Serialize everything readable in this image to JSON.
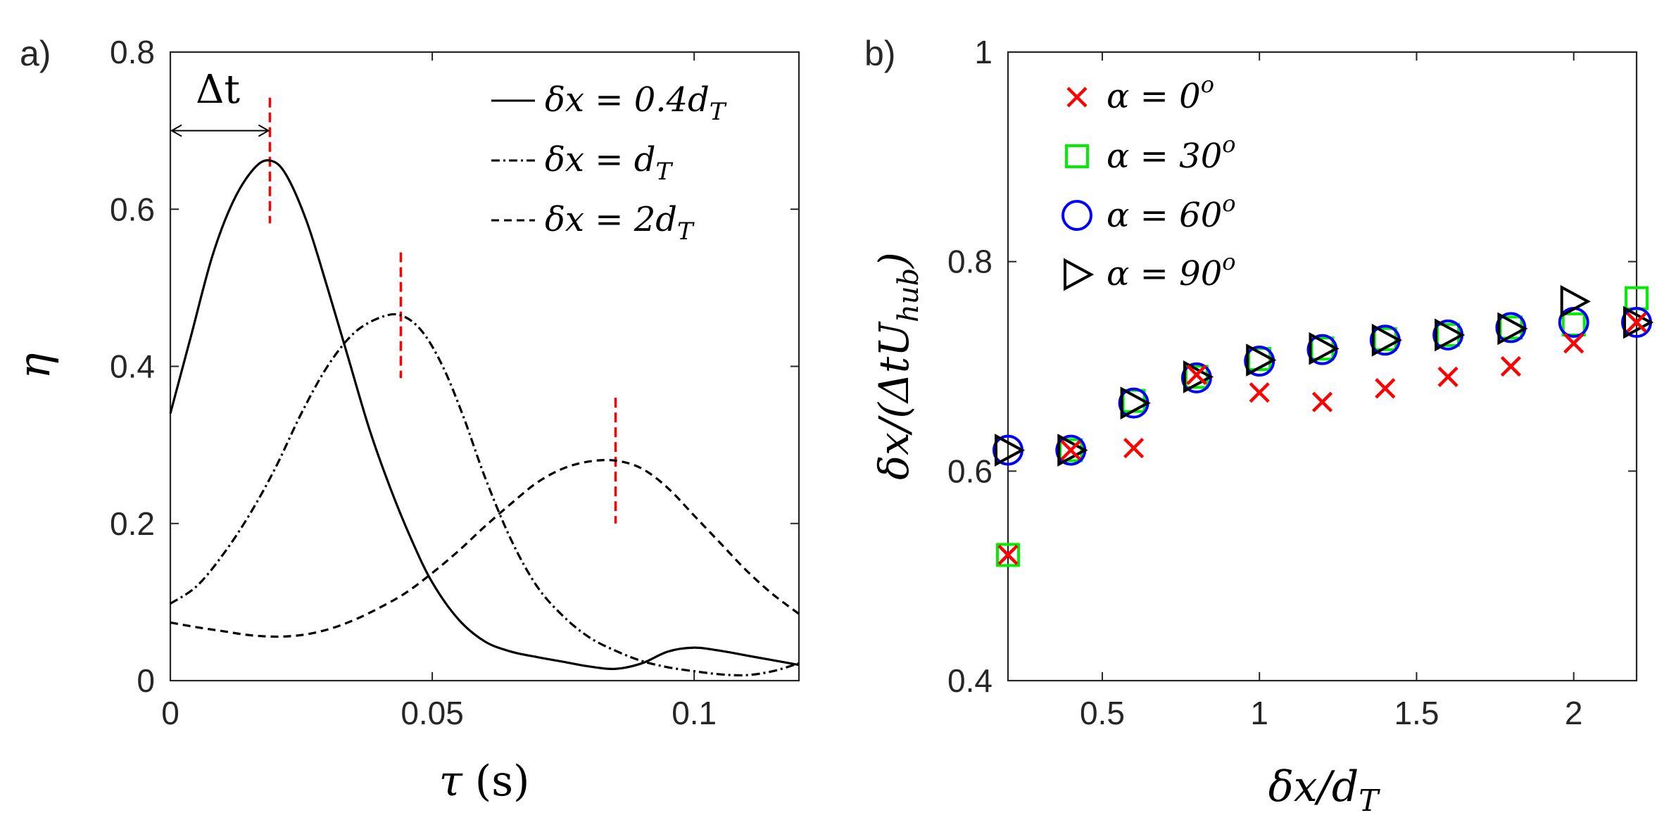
{
  "colors": {
    "axis": "#262626",
    "guide": "#ff0000",
    "green": "#00ee00",
    "blue": "#0000ff",
    "red": "#ff0000",
    "black": "#000000"
  },
  "chart_data": [
    {
      "type": "line",
      "panel_label": "a)",
      "xlabel": "τ",
      "xlabel_unit": "(s)",
      "ylabel": "η",
      "xlim": [
        0,
        0.12
      ],
      "ylim": [
        0,
        0.8
      ],
      "xticks": [
        0,
        0.05,
        0.1
      ],
      "xtick_labels": [
        "0",
        "0.05",
        "0.1"
      ],
      "yticks": [
        0,
        0.2,
        0.4,
        0.6,
        0.8
      ],
      "ytick_labels": [
        "0",
        "0.2",
        "0.4",
        "0.6",
        "0.8"
      ],
      "annotation": {
        "text": "Δt",
        "from_x": 0,
        "to_x": 0.019,
        "y": 0.7
      },
      "legend_position": "top-right",
      "series": [
        {
          "name": "δx = 0.4d_T",
          "legend_lhs": "δx = 0.4d",
          "legend_sub": "T",
          "style": "solid",
          "peak_tau": 0.019,
          "x": [
            0,
            0.004,
            0.008,
            0.012,
            0.016,
            0.019,
            0.022,
            0.026,
            0.03,
            0.034,
            0.038,
            0.042,
            0.046,
            0.05,
            0.055,
            0.06,
            0.065,
            0.07,
            0.075,
            0.08,
            0.085,
            0.09,
            0.095,
            0.1,
            0.105,
            0.11,
            0.115,
            0.12
          ],
          "y": [
            0.34,
            0.44,
            0.54,
            0.61,
            0.652,
            0.662,
            0.645,
            0.585,
            0.5,
            0.41,
            0.32,
            0.245,
            0.18,
            0.125,
            0.078,
            0.05,
            0.037,
            0.03,
            0.024,
            0.018,
            0.015,
            0.022,
            0.037,
            0.042,
            0.038,
            0.032,
            0.026,
            0.02
          ]
        },
        {
          "name": "δx = d_T",
          "legend_lhs": "δx = d",
          "legend_sub": "T",
          "style": "dashdot",
          "peak_tau": 0.044,
          "x": [
            0,
            0.005,
            0.01,
            0.015,
            0.02,
            0.025,
            0.03,
            0.035,
            0.04,
            0.044,
            0.048,
            0.052,
            0.056,
            0.06,
            0.065,
            0.07,
            0.075,
            0.08,
            0.085,
            0.09,
            0.095,
            0.1,
            0.105,
            0.11,
            0.115,
            0.12
          ],
          "y": [
            0.098,
            0.12,
            0.16,
            0.21,
            0.27,
            0.34,
            0.4,
            0.442,
            0.462,
            0.465,
            0.445,
            0.4,
            0.335,
            0.26,
            0.18,
            0.12,
            0.082,
            0.055,
            0.038,
            0.025,
            0.017,
            0.012,
            0.008,
            0.007,
            0.012,
            0.022
          ]
        },
        {
          "name": "δx = 2d_T",
          "legend_lhs": "δx = 2d",
          "legend_sub": "T",
          "style": "dashed",
          "peak_tau": 0.085,
          "x": [
            0,
            0.005,
            0.01,
            0.015,
            0.02,
            0.025,
            0.03,
            0.035,
            0.04,
            0.045,
            0.05,
            0.055,
            0.06,
            0.065,
            0.07,
            0.075,
            0.08,
            0.085,
            0.09,
            0.095,
            0.1,
            0.105,
            0.11,
            0.115,
            0.12
          ],
          "y": [
            0.074,
            0.068,
            0.063,
            0.058,
            0.056,
            0.058,
            0.065,
            0.077,
            0.093,
            0.112,
            0.137,
            0.165,
            0.196,
            0.225,
            0.252,
            0.27,
            0.279,
            0.28,
            0.27,
            0.245,
            0.21,
            0.175,
            0.14,
            0.11,
            0.085
          ]
        }
      ]
    },
    {
      "type": "scatter",
      "panel_label": "b)",
      "xlabel": "δx/d",
      "xlabel_sub": "T",
      "ylabel": "δx/(ΔtU",
      "ylabel_sub": "hub",
      "ylabel_close": ")",
      "xlim": [
        0.2,
        2.2
      ],
      "ylim": [
        0.4,
        1.0
      ],
      "xticks": [
        0.5,
        1,
        1.5,
        2
      ],
      "xtick_labels": [
        "0.5",
        "1",
        "1.5",
        "2"
      ],
      "yticks": [
        0.4,
        0.6,
        0.8,
        1.0
      ],
      "ytick_labels": [
        "0.4",
        "0.6",
        "0.8",
        "1"
      ],
      "legend_position": "top-left",
      "series": [
        {
          "name": "α = 0°",
          "legend_lhs": "α = 0",
          "legend_sup": "o",
          "marker": "x",
          "color": "#ff0000",
          "x": [
            0.2,
            0.4,
            0.6,
            0.8,
            1.0,
            1.2,
            1.4,
            1.6,
            1.8,
            2.0,
            2.2
          ],
          "y": [
            0.52,
            0.62,
            0.622,
            0.692,
            0.675,
            0.666,
            0.679,
            0.69,
            0.7,
            0.722,
            0.742
          ]
        },
        {
          "name": "α = 30°",
          "legend_lhs": "α = 30",
          "legend_sup": "o",
          "marker": "square",
          "color": "#00ee00",
          "x": [
            0.2,
            0.4,
            0.6,
            0.8,
            1.0,
            1.2,
            1.4,
            1.6,
            1.8,
            2.0,
            2.2
          ],
          "y": [
            0.52,
            0.62,
            0.667,
            0.69,
            0.707,
            0.717,
            0.726,
            0.73,
            0.737,
            0.74,
            0.765
          ]
        },
        {
          "name": "α = 60°",
          "legend_lhs": "α = 60",
          "legend_sup": "o",
          "marker": "circle",
          "color": "#0000ff",
          "x": [
            0.2,
            0.4,
            0.6,
            0.8,
            1.0,
            1.2,
            1.4,
            1.6,
            1.8,
            2.0,
            2.2
          ],
          "y": [
            0.62,
            0.62,
            0.665,
            0.689,
            0.705,
            0.716,
            0.725,
            0.73,
            0.737,
            0.742,
            0.742
          ]
        },
        {
          "name": "α = 90°",
          "legend_lhs": "α = 90",
          "legend_sup": "o",
          "marker": "triangle-right",
          "color": "#000000",
          "x": [
            0.2,
            0.4,
            0.6,
            0.8,
            1.0,
            1.2,
            1.4,
            1.6,
            1.8,
            2.0,
            2.2
          ],
          "y": [
            0.62,
            0.62,
            0.665,
            0.69,
            0.706,
            0.717,
            0.725,
            0.73,
            0.736,
            0.762,
            0.742
          ]
        }
      ]
    }
  ]
}
